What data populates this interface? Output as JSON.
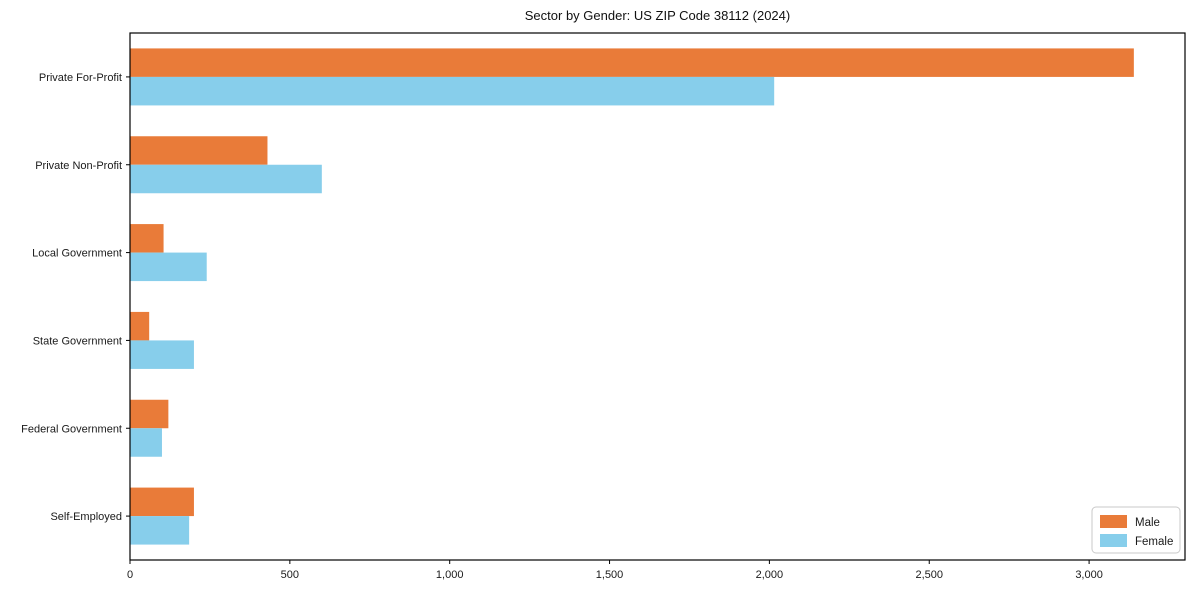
{
  "page": {
    "background": "#ffffff"
  },
  "chart_data": {
    "type": "bar",
    "orientation": "horizontal",
    "title": "Sector by Gender: US ZIP Code 38112 (2024)",
    "categories": [
      "Private For-Profit",
      "Private Non-Profit",
      "Local Government",
      "State Government",
      "Federal Government",
      "Self-Employed"
    ],
    "series": [
      {
        "name": "Male",
        "color": "#E97B39",
        "values": [
          3140,
          430,
          105,
          60,
          120,
          200
        ]
      },
      {
        "name": "Female",
        "color": "#87CEEB",
        "values": [
          2015,
          600,
          240,
          200,
          100,
          185
        ]
      }
    ],
    "xlabel": "",
    "ylabel": "",
    "xlim": [
      0,
      3300
    ],
    "xticks": [
      {
        "value": 0,
        "label": "0"
      },
      {
        "value": 500,
        "label": "500"
      },
      {
        "value": 1000,
        "label": "1,000"
      },
      {
        "value": 1500,
        "label": "1,500"
      },
      {
        "value": 2000,
        "label": "2,000"
      },
      {
        "value": 2500,
        "label": "2,500"
      },
      {
        "value": 3000,
        "label": "3,000"
      }
    ],
    "grid": false,
    "legend": {
      "position": "lower right",
      "entries": [
        "Male",
        "Female"
      ]
    },
    "colors": {
      "axis": "#000000",
      "text": "#1a1a1a",
      "legend_border": "#c9c9c9",
      "legend_background": "#ffffff"
    }
  }
}
